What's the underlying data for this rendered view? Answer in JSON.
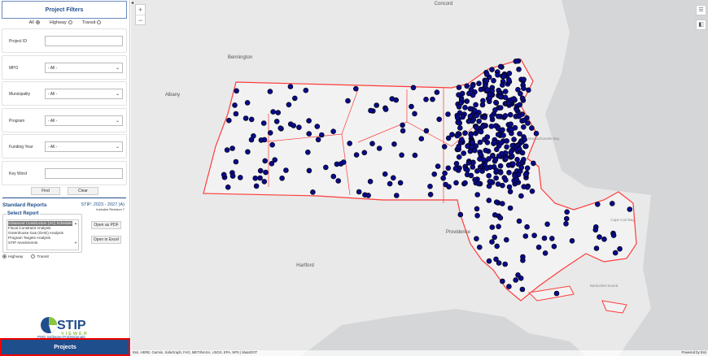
{
  "sidebar": {
    "title": "Project Filters",
    "mode_options": [
      {
        "label": "All",
        "selected": true
      },
      {
        "label": "Highway",
        "selected": false
      },
      {
        "label": "Transit",
        "selected": false
      }
    ],
    "filters": [
      {
        "label": "Project ID",
        "type": "text",
        "value": ""
      },
      {
        "label": "MPO",
        "type": "select",
        "value": "- All -"
      },
      {
        "label": "Municipality",
        "type": "select",
        "value": "- All -"
      },
      {
        "label": "Program",
        "type": "select",
        "value": "- All -"
      },
      {
        "label": "Funding Year",
        "type": "select",
        "value": "- All -"
      },
      {
        "label": "Key Word",
        "type": "text",
        "value": ""
      }
    ],
    "find_label": "Find",
    "clear_label": "Clear",
    "standard_reports": "Standard Reports",
    "stip": "STIP: 2023 - 2027 (A)",
    "revision": "Includes Revision 7",
    "select_report": "Select Report",
    "reports": [
      "Advanced Construction (AC) Schedule",
      "Fiscal Constraint Analysis",
      "Greenhouse Gas (GHG) Analysis",
      "Program Targets Analysis",
      "STIP Investments"
    ],
    "selected_report": "Advanced Construction (AC) Schedule",
    "open_pdf": "Open as PDF",
    "open_excel": "Open in Excel",
    "report_modes": [
      {
        "label": "Highway",
        "selected": true
      },
      {
        "label": "Transit",
        "selected": false
      }
    ],
    "logo_text": "STIP",
    "logo_sub": "VIEWER",
    "company": "PMG Software Professionals",
    "projects_label": "Projects"
  },
  "map": {
    "labels": [
      {
        "text": "Concord"
      },
      {
        "text": "Bennington"
      },
      {
        "text": "Albany"
      },
      {
        "text": "Hartford"
      },
      {
        "text": "Providence"
      },
      {
        "text": "Massachusetts Bay"
      },
      {
        "text": "Cape Cod Bay"
      },
      {
        "text": "Nantucket Sound"
      }
    ],
    "zoom_in": "+",
    "zoom_out": "−",
    "attribution": "Esri, HERE, Garmin, SafeGraph, FAO, METI/NASA, USGS, EPA, NPS | MassDOT",
    "powered_by": "Powered by Esri",
    "colors": {
      "boundary": "#ff3b3b",
      "project_dot": "#0a0a8a",
      "land": "#e9e9e9",
      "water": "#d4d6d8"
    }
  }
}
